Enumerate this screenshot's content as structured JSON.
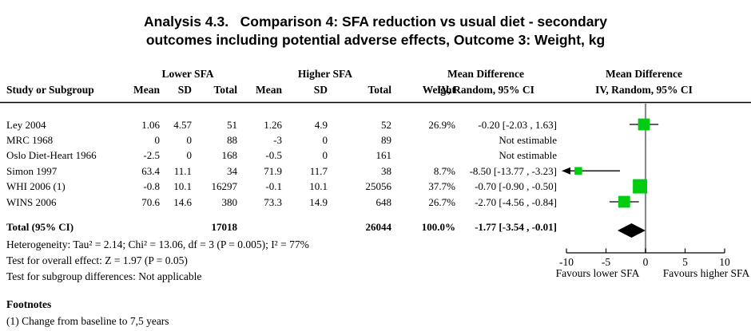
{
  "title": {
    "line1": "Analysis 4.3.   Comparison 4: SFA reduction vs usual diet - secondary",
    "line2": "outcomes including potential adverse effects, Outcome 3: Weight, kg"
  },
  "table": {
    "group_headers": {
      "lower_sfa": "Lower SFA",
      "higher_sfa": "Higher SFA",
      "mean_difference": "Mean Difference"
    },
    "columns": {
      "study": "Study or Subgroup",
      "mean": "Mean",
      "sd": "SD",
      "total": "Total",
      "weight": "Weight",
      "ci": "IV, Random, 95% CI"
    },
    "plot": {
      "header": "Mean Difference",
      "subheader": "IV, Random, 95% CI"
    },
    "rows": [
      {
        "study": "Ley 2004",
        "mean1": "1.06",
        "sd1": "4.57",
        "total1": "51",
        "mean2": "1.26",
        "sd2": "4.9",
        "total2": "52",
        "weight": "26.9%",
        "ci": "-0.20 [-2.03 , 1.63]"
      },
      {
        "study": "MRC 1968",
        "mean1": "0",
        "sd1": "0",
        "total1": "88",
        "mean2": "-3",
        "sd2": "0",
        "total2": "89",
        "weight": "",
        "ci": "Not estimable"
      },
      {
        "study": "Oslo Diet-Heart 1966",
        "mean1": "-2.5",
        "sd1": "0",
        "total1": "168",
        "mean2": "-0.5",
        "sd2": "0",
        "total2": "161",
        "weight": "",
        "ci": "Not estimable"
      },
      {
        "study": "Simon 1997",
        "mean1": "63.4",
        "sd1": "11.1",
        "total1": "34",
        "mean2": "71.9",
        "sd2": "11.7",
        "total2": "38",
        "weight": "8.7%",
        "ci": "-8.50 [-13.77 , -3.23]"
      },
      {
        "study": "WHI 2006 (1)",
        "mean1": "-0.8",
        "sd1": "10.1",
        "total1": "16297",
        "mean2": "-0.1",
        "sd2": "10.1",
        "total2": "25056",
        "weight": "37.7%",
        "ci": "-0.70 [-0.90 , -0.50]"
      },
      {
        "study": "WINS 2006",
        "mean1": "70.6",
        "sd1": "14.6",
        "total1": "380",
        "mean2": "73.3",
        "sd2": "14.9",
        "total2": "648",
        "weight": "26.7%",
        "ci": "-2.70 [-4.56 , -0.84]"
      }
    ],
    "total_row": {
      "label": "Total (95% CI)",
      "total1": "17018",
      "total2": "26044",
      "weight": "100.0%",
      "ci": "-1.77 [-3.54 , -0.01]"
    }
  },
  "stats": {
    "heterogeneity": "Heterogeneity: Tau² = 2.14; Chi² = 13.06, df = 3 (P = 0.005); I² = 77%",
    "overall_effect": "Test for overall effect: Z = 1.97 (P = 0.05)",
    "subgroup_differences": "Test for subgroup differences: Not applicable"
  },
  "footnotes": {
    "heading": "Footnotes",
    "item1": "(1) Change from baseline to 7,5 years"
  },
  "chart_data": {
    "type": "forest",
    "effect_measure": "Mean Difference, IV, Random, 95% CI",
    "axis": {
      "min": -10,
      "max": 10,
      "ticks": [
        -10,
        -5,
        0,
        5,
        10
      ],
      "label_left": "Favours lower SFA",
      "label_right": "Favours higher SFA"
    },
    "studies": [
      {
        "name": "Ley 2004",
        "estimate": -0.2,
        "ci_lower": -2.03,
        "ci_upper": 1.63,
        "weight": 26.9
      },
      {
        "name": "MRC 1968",
        "estimate": null,
        "ci_lower": null,
        "ci_upper": null,
        "weight": null
      },
      {
        "name": "Oslo Diet-Heart 1966",
        "estimate": null,
        "ci_lower": null,
        "ci_upper": null,
        "weight": null
      },
      {
        "name": "Simon 1997",
        "estimate": -8.5,
        "ci_lower": -13.77,
        "ci_upper": -3.23,
        "weight": 8.7
      },
      {
        "name": "WHI 2006 (1)",
        "estimate": -0.7,
        "ci_lower": -0.9,
        "ci_upper": -0.5,
        "weight": 37.7
      },
      {
        "name": "WINS 2006",
        "estimate": -2.7,
        "ci_lower": -4.56,
        "ci_upper": -0.84,
        "weight": 26.7
      }
    ],
    "total": {
      "estimate": -1.77,
      "ci_lower": -3.54,
      "ci_upper": -0.01
    },
    "colors": {
      "marker_green": "#00cc11",
      "diamond_black": "#000000",
      "zero_line_gray": "#8c8c8c",
      "axis_black": "#000000"
    }
  }
}
